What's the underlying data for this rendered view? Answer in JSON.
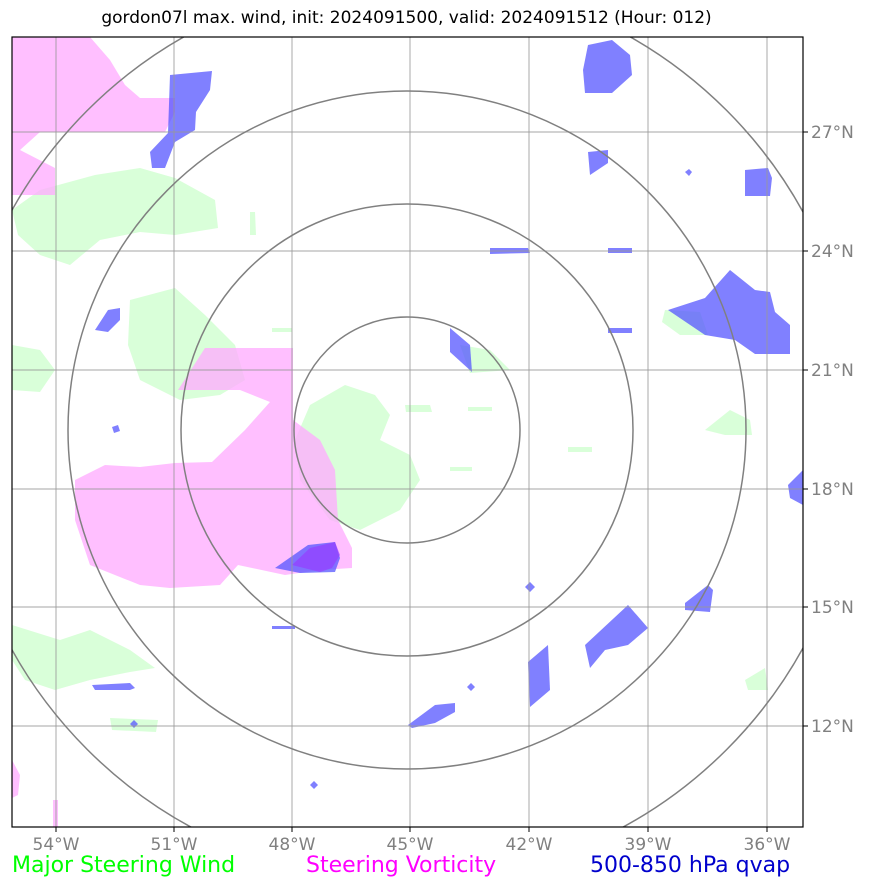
{
  "title": "gordon07l max. wind, init: 2024091500, valid: 2024091512 (Hour: 012)",
  "axes": {
    "lon_labels": [
      "54°W",
      "51°W",
      "48°W",
      "45°W",
      "42°W",
      "39°W",
      "36°W"
    ],
    "lat_labels": [
      "27°N",
      "24°N",
      "21°N",
      "18°N",
      "15°N",
      "12°N"
    ]
  },
  "legend": [
    {
      "label": "Major Steering Wind",
      "color": "#00ff00"
    },
    {
      "label": "Steering Vorticity",
      "color": "#ff00ff"
    },
    {
      "label": "500-850 hPa qvap",
      "color": "#0000cc"
    }
  ],
  "colors": {
    "wind_fill": "#ccffcc",
    "vorticity_fill": "#ffaaff",
    "qvap_fill": "#5555ff",
    "grid": "#999999",
    "range_rings": "#808080"
  }
}
